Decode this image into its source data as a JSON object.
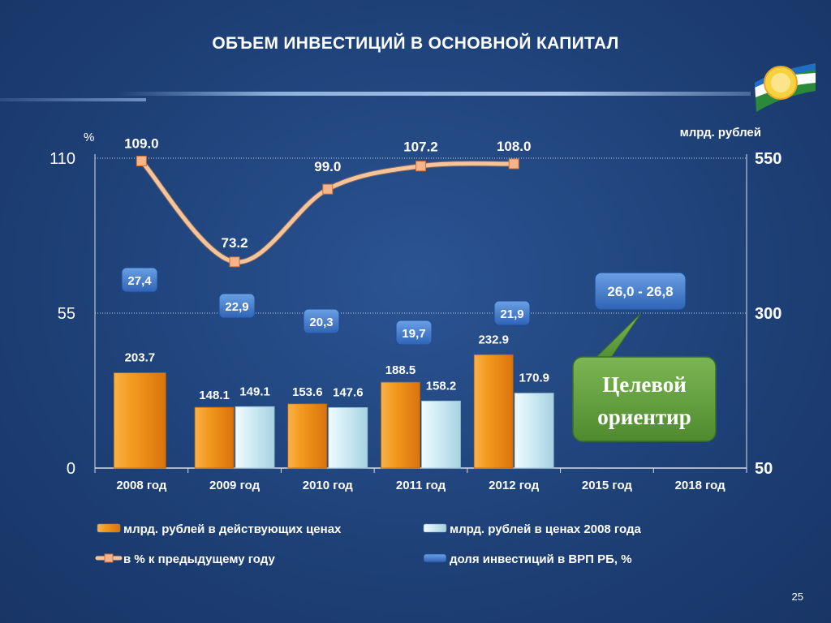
{
  "title": "ОБЪЕМ ИНВЕСТИЦИЙ В ОСНОВНОЙ КАПИТАЛ",
  "page_number": "25",
  "colors": {
    "bar_current": "#f29418",
    "bar_2008": "#cdeaf3",
    "line": "#f6c49a",
    "marker": "#f5b48a",
    "callout": "#3f78c8",
    "target": "#5f9a3c",
    "background": "#1e4178"
  },
  "chart_data": {
    "type": "bar",
    "categories": [
      "2008 год",
      "2009 год",
      "2010 год",
      "2011 год",
      "2012 год",
      "2015 год",
      "2018 год"
    ],
    "left_axis": {
      "unit": "%",
      "ticks": [
        "0",
        "55",
        "110"
      ],
      "range": [
        0,
        110
      ]
    },
    "right_axis": {
      "unit": "млрд. рублей",
      "ticks": [
        "50",
        "300",
        "550"
      ],
      "range": [
        50,
        550
      ]
    },
    "series": [
      {
        "name": "млрд. рублей в действующих ценах",
        "type": "bar",
        "axis": "right",
        "values": [
          203.7,
          148.1,
          153.6,
          188.5,
          232.9,
          null,
          null
        ],
        "labels": [
          "203.7",
          "148.1",
          "153.6",
          "188.5",
          "232.9",
          "",
          ""
        ]
      },
      {
        "name": "млрд. рублей в ценах 2008 года",
        "type": "bar",
        "axis": "right",
        "values": [
          null,
          149.1,
          147.6,
          158.2,
          170.9,
          null,
          null
        ],
        "labels": [
          "",
          "149.1",
          "147.6",
          "158.2",
          "170.9",
          "",
          ""
        ]
      },
      {
        "name": "в % к предыдущему году",
        "type": "line",
        "axis": "left",
        "values": [
          109.0,
          73.2,
          99.0,
          107.2,
          108.0,
          null,
          null
        ],
        "labels": [
          "109.0",
          "73.2",
          "99.0",
          "107.2",
          "108.0",
          "",
          ""
        ]
      },
      {
        "name": "доля инвестиций в ВРП РБ, %",
        "type": "callout",
        "values": [
          27.4,
          22.9,
          20.3,
          19.7,
          21.9,
          null,
          null
        ],
        "labels": [
          "27,4",
          "22,9",
          "20,3",
          "19,7",
          "21,9",
          "",
          ""
        ]
      }
    ],
    "target_range": {
      "label": "26,0 - 26,8",
      "category": "2015 год"
    },
    "target_note": "Целевой ориентир",
    "legend_position": "bottom",
    "grid": true
  }
}
